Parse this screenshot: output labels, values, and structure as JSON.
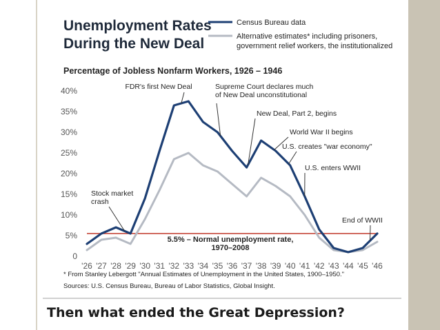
{
  "slide": {
    "caption": "Then what ended the Great Depression?"
  },
  "chart_data": {
    "type": "line",
    "title": "Unemployment Rates During the New Deal",
    "title_lines": [
      "Unemployment Rates",
      "During the New Deal"
    ],
    "subtitle": "Percentage of Jobless Nonfarm Workers, 1926 – 1946",
    "categories": [
      "'26",
      "'27",
      "'28",
      "'29",
      "'30",
      "'31",
      "'32",
      "'33",
      "'34",
      "'35",
      "'36",
      "'37",
      "'38",
      "'39",
      "'40",
      "'41",
      "'42",
      "'43",
      "'44",
      "'45",
      "'46"
    ],
    "x": [
      1926,
      1927,
      1928,
      1929,
      1930,
      1931,
      1932,
      1933,
      1934,
      1935,
      1936,
      1937,
      1938,
      1939,
      1940,
      1941,
      1942,
      1943,
      1944,
      1945,
      1946
    ],
    "ylim": [
      0,
      40
    ],
    "yticks": [
      0,
      5,
      10,
      15,
      20,
      25,
      30,
      35,
      40
    ],
    "ytick_labels": [
      "0",
      "5%",
      "10%",
      "15%",
      "20%",
      "25%",
      "30%",
      "35%",
      "40%"
    ],
    "series": [
      {
        "name": "Census Bureau data",
        "color": "#1d3f74",
        "values": [
          3,
          5.5,
          7,
          5.5,
          14,
          25.5,
          36.5,
          37.5,
          32.5,
          30,
          25.5,
          21.5,
          28,
          25.5,
          22,
          14.5,
          6.5,
          2,
          1,
          2,
          5.5
        ]
      },
      {
        "name": "Alternative estimates* including prisoners, government relief workers, the institutionalized",
        "name_lines": [
          "Alternative estimates* including prisoners,",
          "government relief workers, the institutionalized"
        ],
        "color": "#b5bac3",
        "values": [
          1.5,
          4,
          4.5,
          3,
          9,
          16,
          23.5,
          25,
          22,
          20.5,
          17.5,
          14.5,
          19,
          17,
          14.5,
          10,
          4.5,
          1.5,
          1,
          1.5,
          3.5
        ]
      }
    ],
    "reference_line": {
      "value": 5.5,
      "color": "#c0392b",
      "label_lines": [
        "5.5% – Normal unemployment rate,",
        "1970–2008"
      ]
    },
    "annotations": [
      {
        "year": 1928.6,
        "lines": [
          "Stock market",
          "crash"
        ]
      },
      {
        "year": 1932.5,
        "lines": [
          "FDR's first New Deal"
        ]
      },
      {
        "year": 1935.2,
        "lines": [
          "Supreme Court declares much",
          "of New Deal unconstitutional"
        ]
      },
      {
        "year": 1937.1,
        "lines": [
          "New Deal, Part 2, begins"
        ]
      },
      {
        "year": 1938.9,
        "lines": [
          "World War II begins"
        ]
      },
      {
        "year": 1939.9,
        "lines": [
          "U.S. creates \"war economy\""
        ]
      },
      {
        "year": 1941,
        "lines": [
          "U.S. enters WWII"
        ]
      },
      {
        "year": 1945.5,
        "lines": [
          "End of WWII"
        ]
      }
    ],
    "footnote": "* From Stanley Lebergott \"Annual Estimates of Unemployment in the United States, 1900–1950.\"",
    "sources": "Sources: U.S. Census Bureau, Bureau of Labor Statistics, Global Insight.",
    "legend_position": "top-right",
    "grid": false
  }
}
